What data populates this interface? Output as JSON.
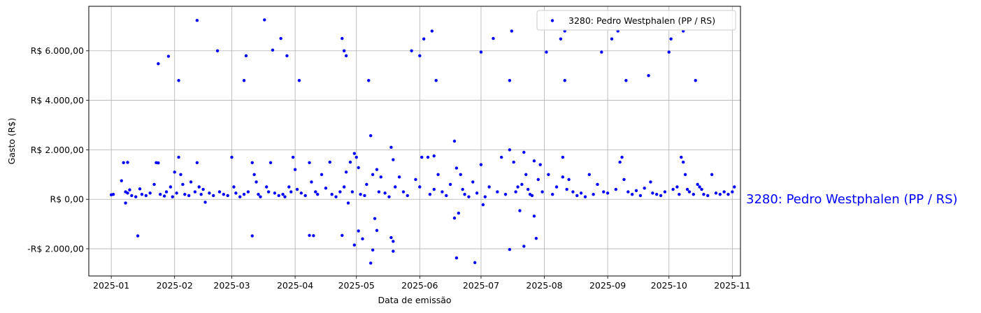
{
  "chart_data": {
    "type": "scatter",
    "xlabel": "Data de emissão",
    "ylabel": "Gasto (R$)",
    "x_ticks": [
      "2025-01",
      "2025-02",
      "2025-03",
      "2025-04",
      "2025-05",
      "2025-06",
      "2025-07",
      "2025-08",
      "2025-09",
      "2025-10",
      "2025-11"
    ],
    "y_ticks": [
      "-R$ 2.000,00",
      "R$ 0,00",
      "R$ 2.000,00",
      "R$ 4.000,00",
      "R$ 6.000,00"
    ],
    "y_tick_values": [
      -2000,
      0,
      2000,
      4000,
      6000
    ],
    "xlim": [
      "2024-12-21",
      "2025-11-05"
    ],
    "ylim": [
      -3100,
      7800
    ],
    "grid": true,
    "legend_placement": "top-right",
    "side_label": "3280: Pedro Westphalen (PP / RS)",
    "colors": {
      "points": "#0000ff",
      "grid": "#b0b0b0",
      "side_label": "#0000ff"
    },
    "series": [
      {
        "name": "3280: Pedro Westphalen (PP / RS)",
        "points": [
          [
            "2025-01-01",
            180
          ],
          [
            "2025-01-02",
            200
          ],
          [
            "2025-01-06",
            750
          ],
          [
            "2025-01-07",
            1480
          ],
          [
            "2025-01-08",
            300
          ],
          [
            "2025-01-08",
            -150
          ],
          [
            "2025-01-09",
            1490
          ],
          [
            "2025-01-09",
            250
          ],
          [
            "2025-01-10",
            380
          ],
          [
            "2025-01-11",
            150
          ],
          [
            "2025-01-13",
            100
          ],
          [
            "2025-01-14",
            -1480
          ],
          [
            "2025-01-15",
            420
          ],
          [
            "2025-01-16",
            200
          ],
          [
            "2025-01-18",
            150
          ],
          [
            "2025-01-20",
            250
          ],
          [
            "2025-01-22",
            600
          ],
          [
            "2025-01-23",
            1480
          ],
          [
            "2025-01-24",
            5480
          ],
          [
            "2025-01-24",
            1470
          ],
          [
            "2025-01-25",
            200
          ],
          [
            "2025-01-27",
            130
          ],
          [
            "2025-01-28",
            300
          ],
          [
            "2025-01-29",
            5780
          ],
          [
            "2025-01-30",
            500
          ],
          [
            "2025-01-31",
            100
          ],
          [
            "2025-02-01",
            1100
          ],
          [
            "2025-02-02",
            250
          ],
          [
            "2025-02-03",
            4800
          ],
          [
            "2025-02-03",
            1700
          ],
          [
            "2025-02-04",
            1000
          ],
          [
            "2025-02-05",
            600
          ],
          [
            "2025-02-06",
            200
          ],
          [
            "2025-02-08",
            150
          ],
          [
            "2025-02-09",
            700
          ],
          [
            "2025-02-11",
            300
          ],
          [
            "2025-02-12",
            7230
          ],
          [
            "2025-02-12",
            1480
          ],
          [
            "2025-02-13",
            500
          ],
          [
            "2025-02-14",
            200
          ],
          [
            "2025-02-15",
            400
          ],
          [
            "2025-02-16",
            -120
          ],
          [
            "2025-02-18",
            250
          ],
          [
            "2025-02-20",
            150
          ],
          [
            "2025-02-22",
            6000
          ],
          [
            "2025-02-23",
            300
          ],
          [
            "2025-02-25",
            200
          ],
          [
            "2025-02-27",
            150
          ],
          [
            "2025-03-01",
            1700
          ],
          [
            "2025-03-02",
            500
          ],
          [
            "2025-03-03",
            250
          ],
          [
            "2025-03-05",
            100
          ],
          [
            "2025-03-07",
            4800
          ],
          [
            "2025-03-07",
            200
          ],
          [
            "2025-03-08",
            5800
          ],
          [
            "2025-03-09",
            300
          ],
          [
            "2025-03-11",
            1480
          ],
          [
            "2025-03-11",
            -1480
          ],
          [
            "2025-03-12",
            1000
          ],
          [
            "2025-03-13",
            700
          ],
          [
            "2025-03-14",
            200
          ],
          [
            "2025-03-15",
            100
          ],
          [
            "2025-03-17",
            7250
          ],
          [
            "2025-03-18",
            500
          ],
          [
            "2025-03-19",
            300
          ],
          [
            "2025-03-20",
            1480
          ],
          [
            "2025-03-21",
            6030
          ],
          [
            "2025-03-22",
            250
          ],
          [
            "2025-03-24",
            150
          ],
          [
            "2025-03-25",
            6500
          ],
          [
            "2025-03-26",
            200
          ],
          [
            "2025-03-27",
            100
          ],
          [
            "2025-03-28",
            5800
          ],
          [
            "2025-03-29",
            500
          ],
          [
            "2025-03-30",
            300
          ],
          [
            "2025-03-31",
            1700
          ],
          [
            "2025-04-01",
            1200
          ],
          [
            "2025-04-02",
            400
          ],
          [
            "2025-04-03",
            4800
          ],
          [
            "2025-04-04",
            250
          ],
          [
            "2025-04-06",
            150
          ],
          [
            "2025-04-08",
            1480
          ],
          [
            "2025-04-08",
            -1460
          ],
          [
            "2025-04-09",
            700
          ],
          [
            "2025-04-10",
            -1470
          ],
          [
            "2025-04-11",
            300
          ],
          [
            "2025-04-12",
            200
          ],
          [
            "2025-04-14",
            1000
          ],
          [
            "2025-04-16",
            450
          ],
          [
            "2025-04-18",
            1500
          ],
          [
            "2025-04-19",
            200
          ],
          [
            "2025-04-21",
            100
          ],
          [
            "2025-04-23",
            300
          ],
          [
            "2025-04-24",
            6500
          ],
          [
            "2025-04-24",
            -1460
          ],
          [
            "2025-04-25",
            6000
          ],
          [
            "2025-04-25",
            500
          ],
          [
            "2025-04-26",
            5800
          ],
          [
            "2025-04-26",
            1100
          ],
          [
            "2025-04-27",
            -150
          ],
          [
            "2025-04-28",
            1500
          ],
          [
            "2025-04-29",
            300
          ],
          [
            "2025-04-30",
            1850
          ],
          [
            "2025-04-30",
            -1850
          ],
          [
            "2025-05-01",
            1700
          ],
          [
            "2025-05-02",
            1280
          ],
          [
            "2025-05-02",
            -1280
          ],
          [
            "2025-05-03",
            200
          ],
          [
            "2025-05-04",
            -1600
          ],
          [
            "2025-05-05",
            150
          ],
          [
            "2025-05-06",
            600
          ],
          [
            "2025-05-07",
            4800
          ],
          [
            "2025-05-08",
            2570
          ],
          [
            "2025-05-08",
            -2580
          ],
          [
            "2025-05-09",
            1000
          ],
          [
            "2025-05-09",
            -2050
          ],
          [
            "2025-05-10",
            -780
          ],
          [
            "2025-05-11",
            1200
          ],
          [
            "2025-05-11",
            -1260
          ],
          [
            "2025-05-12",
            300
          ],
          [
            "2025-05-13",
            900
          ],
          [
            "2025-05-15",
            250
          ],
          [
            "2025-05-17",
            100
          ],
          [
            "2025-05-18",
            2100
          ],
          [
            "2025-05-18",
            -1550
          ],
          [
            "2025-05-19",
            1600
          ],
          [
            "2025-05-19",
            -1700
          ],
          [
            "2025-05-19",
            -2100
          ],
          [
            "2025-05-20",
            500
          ],
          [
            "2025-05-22",
            900
          ],
          [
            "2025-05-24",
            300
          ],
          [
            "2025-05-26",
            150
          ],
          [
            "2025-05-28",
            6000
          ],
          [
            "2025-05-30",
            800
          ],
          [
            "2025-06-01",
            5800
          ],
          [
            "2025-06-01",
            500
          ],
          [
            "2025-06-02",
            1700
          ],
          [
            "2025-06-03",
            6480
          ],
          [
            "2025-06-05",
            1700
          ],
          [
            "2025-06-06",
            200
          ],
          [
            "2025-06-07",
            6800
          ],
          [
            "2025-06-08",
            1750
          ],
          [
            "2025-06-08",
            400
          ],
          [
            "2025-06-09",
            4800
          ],
          [
            "2025-06-10",
            1000
          ],
          [
            "2025-06-12",
            300
          ],
          [
            "2025-06-14",
            150
          ],
          [
            "2025-06-16",
            600
          ],
          [
            "2025-06-18",
            2350
          ],
          [
            "2025-06-18",
            -760
          ],
          [
            "2025-06-19",
            1260
          ],
          [
            "2025-06-19",
            -2370
          ],
          [
            "2025-06-20",
            -560
          ],
          [
            "2025-06-21",
            1000
          ],
          [
            "2025-06-22",
            400
          ],
          [
            "2025-06-23",
            200
          ],
          [
            "2025-06-25",
            100
          ],
          [
            "2025-06-27",
            700
          ],
          [
            "2025-06-28",
            -2560
          ],
          [
            "2025-06-29",
            250
          ],
          [
            "2025-07-01",
            5950
          ],
          [
            "2025-07-01",
            1400
          ],
          [
            "2025-07-02",
            -220
          ],
          [
            "2025-07-03",
            100
          ],
          [
            "2025-07-05",
            500
          ],
          [
            "2025-07-07",
            6500
          ],
          [
            "2025-07-09",
            300
          ],
          [
            "2025-07-11",
            1700
          ],
          [
            "2025-07-13",
            200
          ],
          [
            "2025-07-15",
            4800
          ],
          [
            "2025-07-15",
            2000
          ],
          [
            "2025-07-15",
            -2030
          ],
          [
            "2025-07-16",
            6800
          ],
          [
            "2025-07-17",
            1500
          ],
          [
            "2025-07-18",
            300
          ],
          [
            "2025-07-19",
            500
          ],
          [
            "2025-07-20",
            -460
          ],
          [
            "2025-07-21",
            600
          ],
          [
            "2025-07-22",
            1900
          ],
          [
            "2025-07-22",
            -1900
          ],
          [
            "2025-07-23",
            1000
          ],
          [
            "2025-07-24",
            400
          ],
          [
            "2025-07-25",
            200
          ],
          [
            "2025-07-26",
            150
          ],
          [
            "2025-07-27",
            1550
          ],
          [
            "2025-07-27",
            -680
          ],
          [
            "2025-07-28",
            -1580
          ],
          [
            "2025-07-29",
            800
          ],
          [
            "2025-07-30",
            1400
          ],
          [
            "2025-07-31",
            300
          ],
          [
            "2025-08-02",
            5950
          ],
          [
            "2025-08-03",
            1000
          ],
          [
            "2025-08-05",
            200
          ],
          [
            "2025-08-07",
            500
          ],
          [
            "2025-08-09",
            6480
          ],
          [
            "2025-08-10",
            900
          ],
          [
            "2025-08-10",
            1700
          ],
          [
            "2025-08-11",
            6800
          ],
          [
            "2025-08-11",
            4800
          ],
          [
            "2025-08-12",
            400
          ],
          [
            "2025-08-13",
            800
          ],
          [
            "2025-08-15",
            300
          ],
          [
            "2025-08-17",
            150
          ],
          [
            "2025-08-19",
            250
          ],
          [
            "2025-08-21",
            100
          ],
          [
            "2025-08-23",
            1000
          ],
          [
            "2025-08-25",
            200
          ],
          [
            "2025-08-27",
            600
          ],
          [
            "2025-08-29",
            5950
          ],
          [
            "2025-08-30",
            300
          ],
          [
            "2025-09-01",
            250
          ],
          [
            "2025-09-03",
            6480
          ],
          [
            "2025-09-05",
            400
          ],
          [
            "2025-09-06",
            6800
          ],
          [
            "2025-09-07",
            1500
          ],
          [
            "2025-09-08",
            1700
          ],
          [
            "2025-09-09",
            800
          ],
          [
            "2025-09-10",
            4800
          ],
          [
            "2025-09-11",
            300
          ],
          [
            "2025-09-13",
            200
          ],
          [
            "2025-09-15",
            350
          ],
          [
            "2025-09-17",
            150
          ],
          [
            "2025-09-19",
            450
          ],
          [
            "2025-09-21",
            5000
          ],
          [
            "2025-09-22",
            700
          ],
          [
            "2025-09-23",
            250
          ],
          [
            "2025-09-25",
            200
          ],
          [
            "2025-09-27",
            150
          ],
          [
            "2025-09-29",
            300
          ],
          [
            "2025-10-01",
            5950
          ],
          [
            "2025-10-02",
            6480
          ],
          [
            "2025-10-03",
            400
          ],
          [
            "2025-10-05",
            500
          ],
          [
            "2025-10-06",
            200
          ],
          [
            "2025-10-07",
            1700
          ],
          [
            "2025-10-08",
            6800
          ],
          [
            "2025-10-08",
            1500
          ],
          [
            "2025-10-09",
            1000
          ],
          [
            "2025-10-10",
            400
          ],
          [
            "2025-10-11",
            300
          ],
          [
            "2025-10-13",
            200
          ],
          [
            "2025-10-14",
            4800
          ],
          [
            "2025-10-15",
            600
          ],
          [
            "2025-10-16",
            500
          ],
          [
            "2025-10-17",
            400
          ],
          [
            "2025-10-18",
            200
          ],
          [
            "2025-10-20",
            150
          ],
          [
            "2025-10-22",
            1000
          ],
          [
            "2025-10-24",
            250
          ],
          [
            "2025-10-26",
            200
          ],
          [
            "2025-10-28",
            300
          ],
          [
            "2025-10-30",
            200
          ],
          [
            "2025-11-01",
            300
          ],
          [
            "2025-11-02",
            500
          ]
        ]
      }
    ]
  }
}
